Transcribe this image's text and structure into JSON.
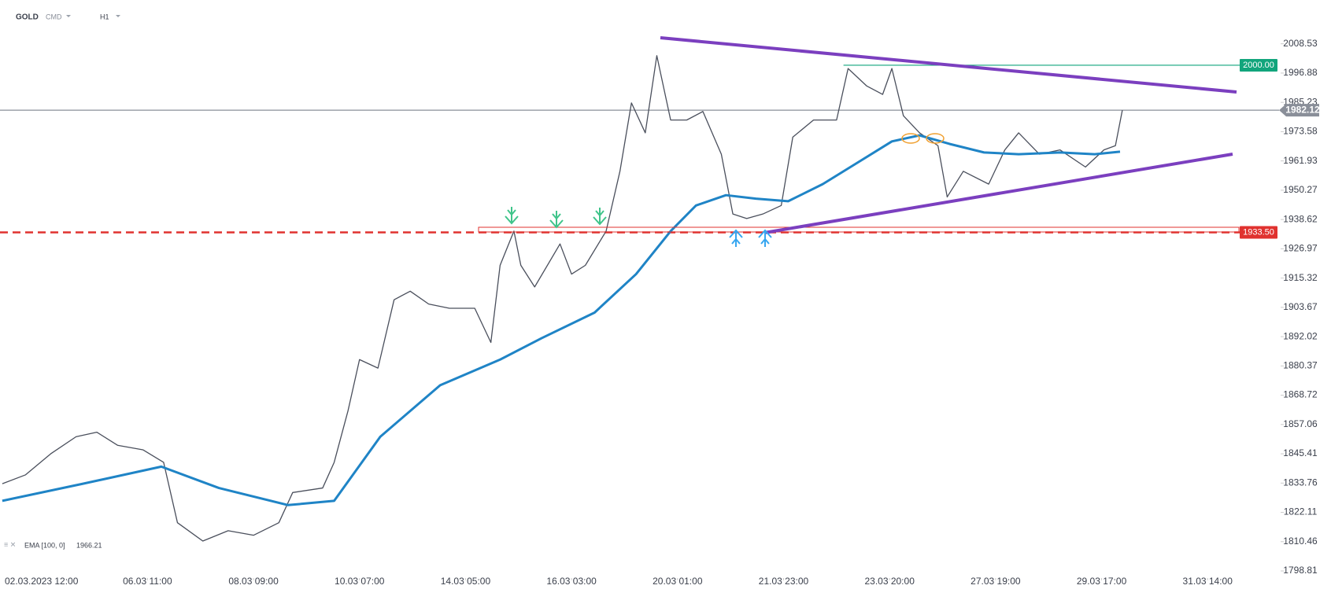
{
  "header": {
    "symbol": "GOLD",
    "market": "CMD",
    "interval": "H1"
  },
  "chart_data": {
    "type": "line",
    "xlim": [
      -18,
      537
    ],
    "xticks": [
      {
        "value": 0,
        "label": "02.03.2023  12:00"
      },
      {
        "value": 46,
        "label": "06.03  11:00"
      },
      {
        "value": 92,
        "label": "08.03  09:00"
      },
      {
        "value": 138,
        "label": "10.03  07:00"
      },
      {
        "value": 184,
        "label": "14.03  05:00"
      },
      {
        "value": 230,
        "label": "16.03  03:00"
      },
      {
        "value": 276,
        "label": "20.03  01:00"
      },
      {
        "value": 322,
        "label": "21.03  23:00"
      },
      {
        "value": 368,
        "label": "23.03  20:00"
      },
      {
        "value": 414,
        "label": "27.03  19:00"
      },
      {
        "value": 460,
        "label": "29.03  17:00"
      },
      {
        "value": 506,
        "label": "31.03  14:00"
      }
    ],
    "ylim": [
      1796,
      2015
    ],
    "yticks": [
      2008.53,
      1996.88,
      1985.23,
      1973.58,
      1961.93,
      1950.27,
      1938.62,
      1926.97,
      1915.32,
      1903.67,
      1892.02,
      1880.37,
      1868.72,
      1857.06,
      1845.41,
      1833.76,
      1822.11,
      1810.46,
      1798.81
    ],
    "series": [
      {
        "color": "#4a4f5c",
        "x": [
          -17,
          -7,
          4,
          15,
          24,
          33,
          44,
          53,
          59,
          70,
          81,
          92,
          103,
          109,
          122,
          127,
          133,
          138,
          146,
          153,
          160,
          168,
          177,
          188,
          195,
          199,
          205,
          208,
          214,
          225,
          230,
          236,
          245,
          251,
          256,
          262,
          267,
          273,
          280,
          287,
          295,
          300,
          306,
          313,
          321,
          326,
          335,
          345,
          350,
          358,
          365,
          369,
          374,
          381,
          389,
          393,
          400,
          411,
          418,
          424,
          433,
          442,
          453,
          461,
          466,
          469
        ],
        "values": [
          1833.5,
          1837,
          1845.4,
          1852.2,
          1854,
          1848.8,
          1847,
          1842,
          1818,
          1810.7,
          1814.8,
          1813,
          1818,
          1830,
          1831.8,
          1842,
          1862.5,
          1882.9,
          1879.5,
          1906.7,
          1910.1,
          1905,
          1903.3,
          1903.3,
          1889.7,
          1920.4,
          1934,
          1920.4,
          1911.8,
          1928.9,
          1916.9,
          1920.4,
          1934,
          1957.8,
          1985,
          1973.1,
          2003.8,
          1978.2,
          1978.2,
          1981.6,
          1964.6,
          1940.8,
          1939,
          1940.8,
          1944.2,
          1971.4,
          1978.2,
          1978.2,
          1998.7,
          1991.8,
          1988.4,
          1998.7,
          1979.9,
          1973.1,
          1968,
          1947.6,
          1957.8,
          1952.7,
          1966.3,
          1973.1,
          1964.6,
          1966.3,
          1959.5,
          1966.3,
          1968,
          1982.1
        ]
      },
      {
        "name": "EMA [100, 0]",
        "color": "#1f84c6",
        "last_value": 1966.21,
        "x": [
          -17,
          18,
          52,
          77,
          107,
          127,
          147,
          173,
          199,
          217,
          240,
          258,
          273,
          284,
          297,
          310,
          324,
          339,
          354,
          369,
          381,
          394,
          409,
          424,
          442,
          457,
          468
        ],
        "values": [
          1826.7,
          1833.5,
          1840.3,
          1831.8,
          1825,
          1826.7,
          1852.2,
          1872.7,
          1882.9,
          1891.4,
          1901.6,
          1916.9,
          1934,
          1944.2,
          1948.3,
          1946.9,
          1945.9,
          1952.7,
          1961.2,
          1969.7,
          1972.1,
          1968.7,
          1965.3,
          1964.6,
          1965.3,
          1964.6,
          1965.6
        ]
      }
    ],
    "levels": [
      {
        "value": 2000.0,
        "label": "2000.00",
        "color": "#12a57c",
        "x": [
          348,
          520
        ]
      },
      {
        "value": 1982.12,
        "color": "#8a8f99"
      },
      {
        "value": 1933.5,
        "label": "1933.50",
        "color": "#e0322f",
        "dashed": true
      }
    ]
  }
}
